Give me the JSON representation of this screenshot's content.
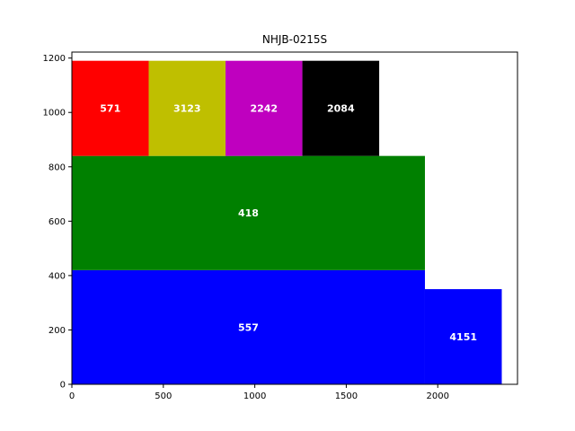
{
  "chart_data": {
    "type": "bar",
    "title": "NHJB-0215S",
    "xlabel": "",
    "ylabel": "",
    "xlim": [
      0,
      2436
    ],
    "ylim": [
      0,
      1222
    ],
    "x_ticks": [
      0,
      500,
      1000,
      1500,
      2000
    ],
    "y_ticks": [
      0,
      200,
      400,
      600,
      800,
      1000,
      1200
    ],
    "grid": false,
    "legend": "none",
    "rectangles": [
      {
        "label": "557",
        "x": 0,
        "y": 0,
        "width": 1930,
        "height": 420,
        "color": "#0000ff"
      },
      {
        "label": "4151",
        "x": 1930,
        "y": 0,
        "width": 420,
        "height": 350,
        "color": "#0000ff"
      },
      {
        "label": "418",
        "x": 0,
        "y": 420,
        "width": 1930,
        "height": 420,
        "color": "#008000"
      },
      {
        "label": "571",
        "x": 0,
        "y": 840,
        "width": 420,
        "height": 350,
        "color": "#ff0000"
      },
      {
        "label": "3123",
        "x": 420,
        "y": 840,
        "width": 420,
        "height": 350,
        "color": "#bfbf00"
      },
      {
        "label": "2242",
        "x": 840,
        "y": 840,
        "width": 420,
        "height": 350,
        "color": "#bf00bf"
      },
      {
        "label": "2084",
        "x": 1260,
        "y": 840,
        "width": 420,
        "height": 350,
        "color": "#000000"
      }
    ]
  }
}
